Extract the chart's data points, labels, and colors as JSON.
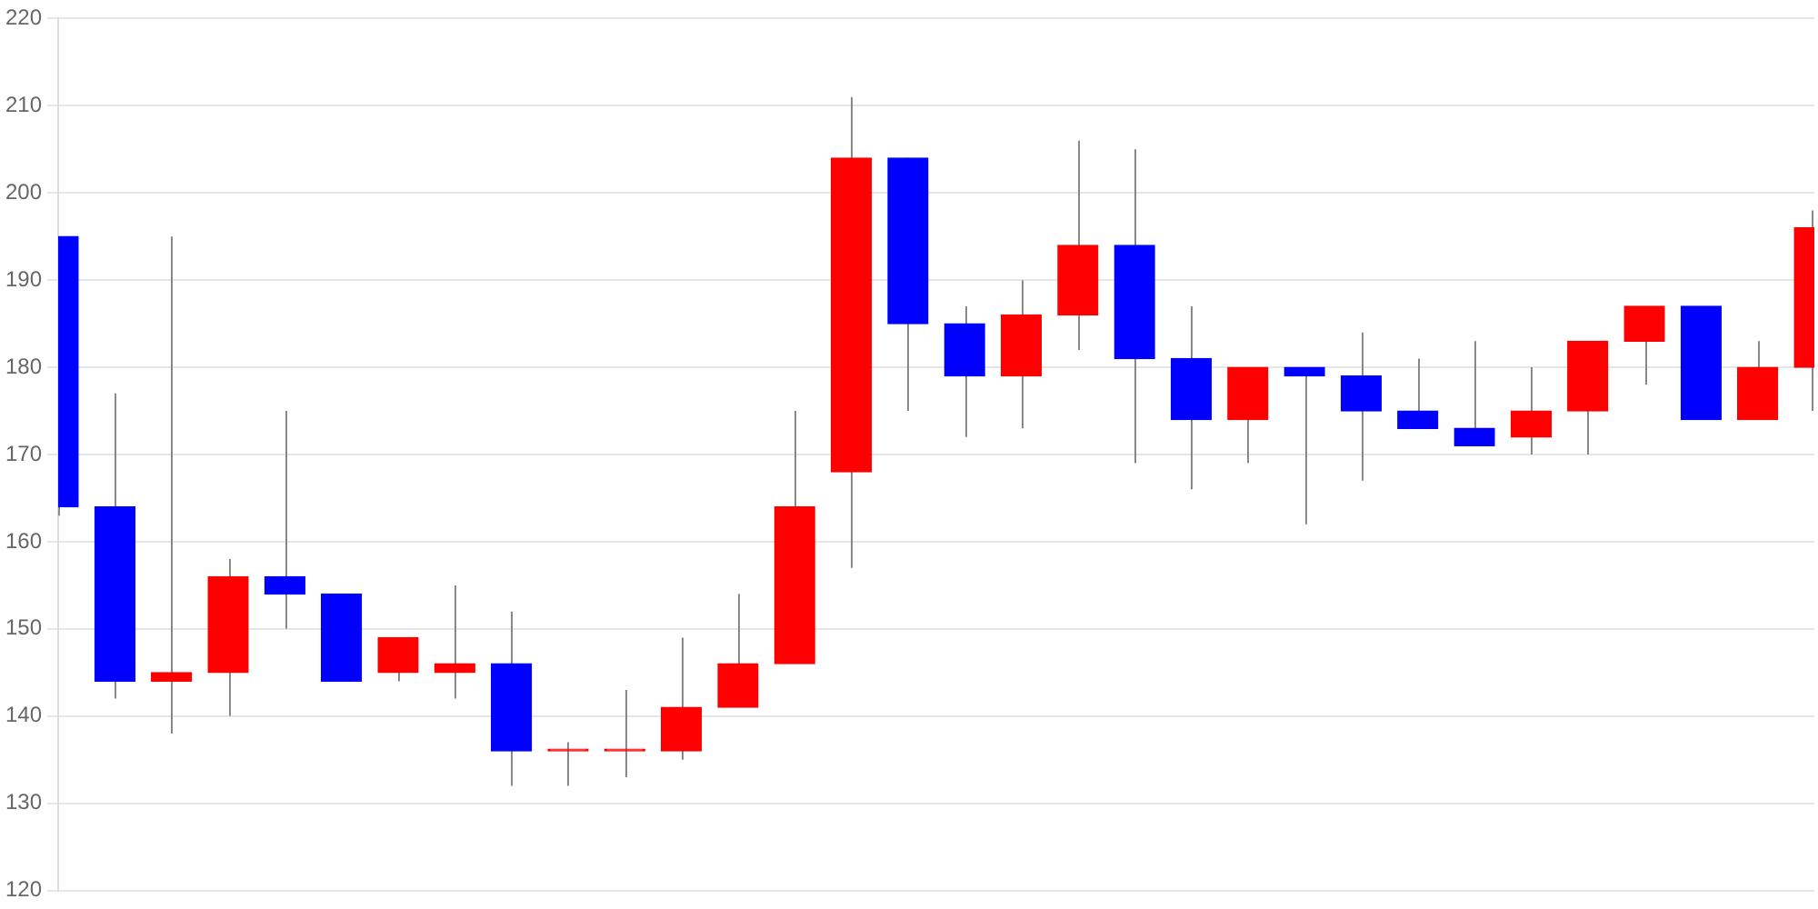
{
  "chart_data": {
    "type": "candlestick",
    "categories": [
      null,
      null,
      null,
      null,
      null,
      null,
      null,
      null,
      null,
      null,
      null,
      null,
      null,
      null,
      null,
      null,
      null,
      null,
      null,
      null,
      null,
      null,
      null,
      null,
      null,
      null,
      null,
      null,
      null,
      null,
      null,
      null
    ],
    "ohlc": [
      [
        195,
        195,
        163,
        164
      ],
      [
        164,
        177,
        142,
        144
      ],
      [
        144,
        195,
        138,
        145
      ],
      [
        145,
        158,
        140,
        156
      ],
      [
        156,
        175,
        150,
        154
      ],
      [
        154,
        154,
        144,
        144
      ],
      [
        145,
        149,
        144,
        149
      ],
      [
        145,
        155,
        142,
        146
      ],
      [
        146,
        152,
        132,
        136
      ],
      [
        136,
        137,
        132,
        136
      ],
      [
        136,
        143,
        133,
        136
      ],
      [
        136,
        149,
        135,
        141
      ],
      [
        141,
        154,
        141,
        146
      ],
      [
        146,
        175,
        146,
        164
      ],
      [
        168,
        211,
        157,
        204
      ],
      [
        204,
        204,
        175,
        185
      ],
      [
        185,
        187,
        172,
        179
      ],
      [
        179,
        190,
        173,
        186
      ],
      [
        186,
        206,
        182,
        194
      ],
      [
        194,
        205,
        169,
        181
      ],
      [
        181,
        187,
        166,
        174
      ],
      [
        174,
        180,
        169,
        180
      ],
      [
        180,
        180,
        162,
        179
      ],
      [
        179,
        184,
        167,
        175
      ],
      [
        175,
        181,
        173,
        173
      ],
      [
        173,
        183,
        171,
        171
      ],
      [
        172,
        180,
        170,
        175
      ],
      [
        175,
        183,
        170,
        183
      ],
      [
        183,
        187,
        178,
        187
      ],
      [
        187,
        187,
        174,
        174
      ],
      [
        174,
        183,
        174,
        180
      ],
      [
        180,
        198,
        175,
        196
      ]
    ],
    "colors": [
      "#0000ff",
      "#0000ff",
      "#ff0000",
      "#ff0000",
      "#0000ff",
      "#0000ff",
      "#ff0000",
      "#ff0000",
      "#0000ff",
      "#ff0000",
      "#ff0000",
      "#ff0000",
      "#ff0000",
      "#ff0000",
      "#ff0000",
      "#0000ff",
      "#0000ff",
      "#ff0000",
      "#ff0000",
      "#0000ff",
      "#0000ff",
      "#ff0000",
      "#0000ff",
      "#0000ff",
      "#0000ff",
      "#0000ff",
      "#ff0000",
      "#ff0000",
      "#ff0000",
      "#0000ff",
      "#ff0000",
      "#ff0000"
    ],
    "ylim": [
      120,
      220
    ],
    "yticks": [
      120,
      130,
      140,
      150,
      160,
      170,
      180,
      190,
      200,
      210,
      220
    ],
    "grid": "y",
    "tick_labels": "y",
    "legend": false
  }
}
